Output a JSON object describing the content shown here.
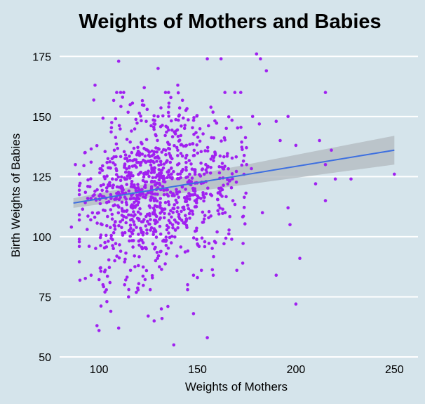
{
  "chart_data": {
    "type": "scatter",
    "title": "Weights of Mothers and Babies",
    "xlabel": "Weights of Mothers",
    "ylabel": "Birth Weights of Babies",
    "xlim": [
      80,
      262
    ],
    "ylim": [
      50,
      178
    ],
    "x_ticks": [
      "100",
      "150",
      "200",
      "250"
    ],
    "y_ticks": [
      "50",
      "75",
      "100",
      "125",
      "150",
      "175"
    ],
    "grid": "horizontal",
    "colors": {
      "background": "#d5e4eb",
      "points": "#a020f0",
      "trend_line": "#3d6fe0",
      "confidence_band": "#b4bcc2",
      "grid": "#ffffff"
    },
    "trend": {
      "x": [
        87,
        250
      ],
      "y": [
        114,
        136
      ],
      "ci_low": [
        112,
        130
      ],
      "ci_high": [
        116,
        142
      ]
    },
    "points": [
      [
        110,
        173
      ],
      [
        109,
        160
      ],
      [
        112,
        158
      ],
      [
        123,
        162
      ],
      [
        130,
        170
      ],
      [
        140,
        163
      ],
      [
        155,
        174
      ],
      [
        162,
        174
      ],
      [
        180,
        176
      ],
      [
        182,
        174
      ],
      [
        185,
        169
      ],
      [
        172,
        160
      ],
      [
        178,
        150
      ],
      [
        215,
        160
      ],
      [
        190,
        148
      ],
      [
        196,
        150
      ],
      [
        98,
        163
      ],
      [
        93,
        135
      ],
      [
        90,
        126
      ],
      [
        96,
        131
      ],
      [
        88,
        130
      ],
      [
        97,
        117
      ],
      [
        94,
        103
      ],
      [
        95,
        96
      ],
      [
        86,
        104
      ],
      [
        96,
        84
      ],
      [
        99,
        63
      ],
      [
        100,
        61
      ],
      [
        110,
        62
      ],
      [
        138,
        55
      ],
      [
        155,
        58
      ],
      [
        128,
        65
      ],
      [
        125,
        67
      ],
      [
        132,
        66
      ],
      [
        135,
        71
      ],
      [
        145,
        78
      ],
      [
        200,
        72
      ],
      [
        202,
        91
      ],
      [
        190,
        84
      ],
      [
        170,
        86
      ],
      [
        173,
        89
      ],
      [
        183,
        110
      ],
      [
        196,
        112
      ],
      [
        197,
        105
      ],
      [
        210,
        122
      ],
      [
        212,
        140
      ],
      [
        215,
        115
      ],
      [
        220,
        124
      ],
      [
        228,
        124
      ],
      [
        250,
        126
      ],
      [
        215,
        130
      ],
      [
        218,
        136
      ],
      [
        200,
        138
      ],
      [
        192,
        140
      ],
      [
        175,
        130
      ],
      [
        168,
        115
      ],
      [
        160,
        102
      ],
      [
        150,
        83
      ],
      [
        148,
        84
      ],
      [
        152,
        86
      ],
      [
        158,
        84
      ],
      [
        145,
        80
      ],
      [
        148,
        68
      ],
      [
        150,
        97
      ],
      [
        104,
        73
      ],
      [
        106,
        69
      ],
      [
        115,
        75
      ],
      [
        103,
        77
      ],
      [
        102,
        80
      ],
      [
        120,
        88
      ],
      [
        113,
        80
      ],
      [
        108,
        90
      ],
      [
        118,
        92
      ],
      [
        122,
        95
      ],
      [
        126,
        78
      ],
      [
        116,
        86
      ],
      [
        112,
        107
      ],
      [
        118,
        132
      ],
      [
        130,
        150
      ],
      [
        124,
        148
      ]
    ]
  }
}
